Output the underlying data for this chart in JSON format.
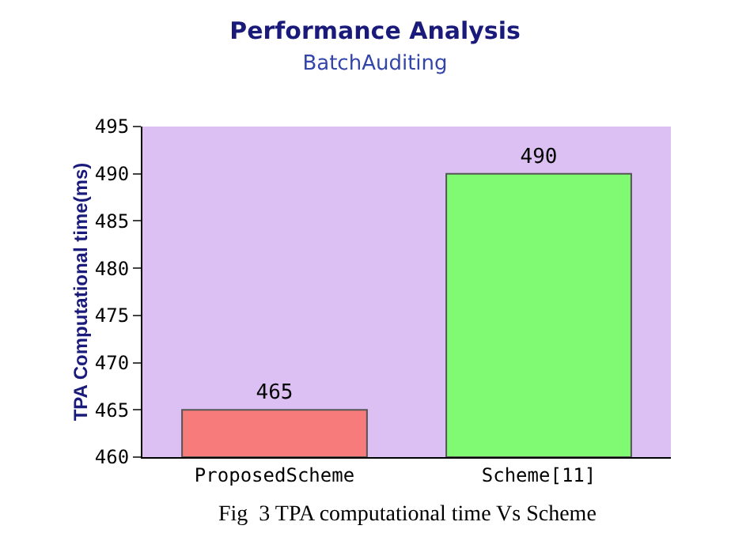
{
  "chart_data": {
    "type": "bar",
    "title": "Performance Analysis",
    "subtitle": "BatchAuditing",
    "ylabel": "TPA Computational time(ms)",
    "categories": [
      "ProposedScheme",
      "Scheme[11]"
    ],
    "values": [
      465,
      490
    ],
    "colors": [
      "#f77b7b",
      "#80fa72"
    ],
    "ylim": [
      460,
      495
    ],
    "yticks": [
      460,
      465,
      470,
      475,
      480,
      485,
      490,
      495
    ],
    "data_labels": true,
    "annotations": [
      "Fig  3 TPA computational time Vs Scheme"
    ]
  }
}
